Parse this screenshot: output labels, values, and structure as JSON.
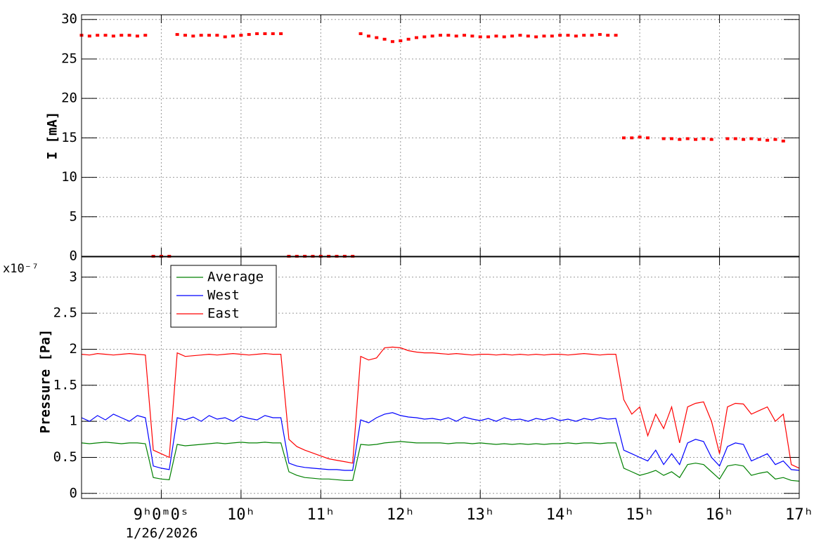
{
  "chart_data": [
    {
      "type": "scatter",
      "y_label": "I [mA]",
      "x": [
        8.0,
        8.1,
        8.2,
        8.3,
        8.4,
        8.5,
        8.6,
        8.7,
        8.8,
        8.9,
        9.0,
        9.1,
        9.2,
        9.3,
        9.4,
        9.5,
        9.6,
        9.7,
        9.8,
        9.9,
        10.0,
        10.1,
        10.2,
        10.3,
        10.4,
        10.5,
        10.6,
        10.7,
        10.8,
        10.9,
        11.0,
        11.1,
        11.2,
        11.3,
        11.4,
        11.5,
        11.6,
        11.7,
        11.8,
        11.9,
        12.0,
        12.1,
        12.2,
        12.3,
        12.4,
        12.5,
        12.6,
        12.7,
        12.8,
        12.9,
        13.0,
        13.1,
        13.2,
        13.3,
        13.4,
        13.5,
        13.6,
        13.7,
        13.8,
        13.9,
        14.0,
        14.1,
        14.2,
        14.3,
        14.4,
        14.5,
        14.6,
        14.7,
        14.8,
        14.9,
        15.0,
        15.1,
        15.2,
        15.3,
        15.4,
        15.5,
        15.6,
        15.7,
        15.8,
        15.9,
        16.0,
        16.1,
        16.2,
        16.3,
        16.4,
        16.5,
        16.6,
        16.7,
        16.8,
        16.9,
        17.0
      ],
      "series": [
        {
          "color": "#ff0000",
          "values": [
            28,
            27.9,
            28,
            28,
            27.9,
            28,
            28,
            27.9,
            28,
            0,
            0,
            0,
            28.1,
            28,
            27.9,
            28,
            28,
            28,
            27.8,
            27.9,
            28,
            28.1,
            28.2,
            28.2,
            28.2,
            28.2,
            0,
            0,
            0,
            0,
            0,
            0,
            0,
            0,
            0,
            28.2,
            27.9,
            27.7,
            27.5,
            27.2,
            27.3,
            27.5,
            27.7,
            27.8,
            27.9,
            28,
            28,
            27.9,
            28,
            27.9,
            27.8,
            27.8,
            27.9,
            27.8,
            27.9,
            28,
            27.9,
            27.8,
            27.9,
            27.9,
            28,
            28,
            27.9,
            28,
            28,
            28.1,
            28,
            28,
            15,
            15,
            15.1,
            15,
            null,
            14.9,
            14.9,
            14.8,
            14.9,
            14.8,
            14.9,
            14.8,
            null,
            14.9,
            14.9,
            14.8,
            14.9,
            14.8,
            14.7,
            14.8,
            14.6,
            null,
            null
          ]
        }
      ],
      "xlim": [
        8,
        17
      ],
      "ylim": [
        0,
        30.6
      ],
      "yticks": [
        0,
        5,
        10,
        15,
        20,
        25,
        30
      ],
      "grid": true
    },
    {
      "type": "line",
      "y_label": "Pressure [Pa]",
      "exponent_label": "x10⁻⁷",
      "date_label": "1/26/2026",
      "x": [
        8.0,
        8.1,
        8.2,
        8.3,
        8.4,
        8.5,
        8.6,
        8.7,
        8.8,
        8.9,
        9.0,
        9.1,
        9.2,
        9.3,
        9.4,
        9.5,
        9.6,
        9.7,
        9.8,
        9.9,
        10.0,
        10.1,
        10.2,
        10.3,
        10.4,
        10.5,
        10.6,
        10.7,
        10.8,
        10.9,
        11.0,
        11.1,
        11.2,
        11.3,
        11.4,
        11.5,
        11.6,
        11.7,
        11.8,
        11.9,
        12.0,
        12.1,
        12.2,
        12.3,
        12.4,
        12.5,
        12.6,
        12.7,
        12.8,
        12.9,
        13.0,
        13.1,
        13.2,
        13.3,
        13.4,
        13.5,
        13.6,
        13.7,
        13.8,
        13.9,
        14.0,
        14.1,
        14.2,
        14.3,
        14.4,
        14.5,
        14.6,
        14.7,
        14.8,
        14.9,
        15.0,
        15.1,
        15.2,
        15.3,
        15.4,
        15.5,
        15.6,
        15.7,
        15.8,
        15.9,
        16.0,
        16.1,
        16.2,
        16.3,
        16.4,
        16.5,
        16.6,
        16.7,
        16.8,
        16.9,
        17.0
      ],
      "series": [
        {
          "name": "Average",
          "color": "#008000",
          "values": [
            0.7,
            0.69,
            0.7,
            0.71,
            0.7,
            0.69,
            0.7,
            0.7,
            0.69,
            0.22,
            0.2,
            0.19,
            0.68,
            0.66,
            0.67,
            0.68,
            0.69,
            0.7,
            0.69,
            0.7,
            0.71,
            0.7,
            0.7,
            0.71,
            0.7,
            0.7,
            0.3,
            0.25,
            0.22,
            0.21,
            0.2,
            0.2,
            0.19,
            0.18,
            0.18,
            0.68,
            0.67,
            0.68,
            0.7,
            0.71,
            0.72,
            0.71,
            0.7,
            0.7,
            0.7,
            0.7,
            0.69,
            0.7,
            0.7,
            0.69,
            0.7,
            0.69,
            0.68,
            0.69,
            0.68,
            0.69,
            0.68,
            0.69,
            0.68,
            0.69,
            0.69,
            0.7,
            0.69,
            0.7,
            0.7,
            0.69,
            0.7,
            0.7,
            0.35,
            0.3,
            0.25,
            0.28,
            0.32,
            0.25,
            0.3,
            0.22,
            0.4,
            0.42,
            0.4,
            0.3,
            0.2,
            0.38,
            0.4,
            0.38,
            0.25,
            0.28,
            0.3,
            0.2,
            0.22,
            0.18,
            0.17
          ]
        },
        {
          "name": "West",
          "color": "#0000ff",
          "values": [
            1.05,
            1.0,
            1.08,
            1.02,
            1.1,
            1.05,
            1.0,
            1.08,
            1.05,
            0.38,
            0.35,
            0.33,
            1.05,
            1.02,
            1.06,
            1.0,
            1.08,
            1.03,
            1.05,
            1.0,
            1.07,
            1.04,
            1.02,
            1.08,
            1.05,
            1.05,
            0.42,
            0.38,
            0.36,
            0.35,
            0.34,
            0.33,
            0.33,
            0.32,
            0.32,
            1.02,
            0.98,
            1.05,
            1.1,
            1.12,
            1.08,
            1.06,
            1.05,
            1.03,
            1.04,
            1.02,
            1.05,
            1.0,
            1.06,
            1.03,
            1.01,
            1.04,
            1.0,
            1.05,
            1.02,
            1.03,
            1.0,
            1.04,
            1.02,
            1.05,
            1.01,
            1.03,
            1.0,
            1.04,
            1.02,
            1.05,
            1.03,
            1.04,
            0.6,
            0.55,
            0.5,
            0.45,
            0.6,
            0.4,
            0.55,
            0.4,
            0.7,
            0.75,
            0.72,
            0.5,
            0.38,
            0.65,
            0.7,
            0.68,
            0.45,
            0.5,
            0.55,
            0.4,
            0.45,
            0.33,
            0.32
          ]
        },
        {
          "name": "East",
          "color": "#ff0000",
          "values": [
            1.93,
            1.92,
            1.94,
            1.93,
            1.92,
            1.93,
            1.94,
            1.93,
            1.92,
            0.6,
            0.55,
            0.5,
            1.95,
            1.9,
            1.91,
            1.92,
            1.93,
            1.92,
            1.93,
            1.94,
            1.93,
            1.92,
            1.93,
            1.94,
            1.93,
            1.93,
            0.75,
            0.65,
            0.6,
            0.56,
            0.52,
            0.48,
            0.46,
            0.44,
            0.42,
            1.9,
            1.85,
            1.88,
            2.02,
            2.03,
            2.02,
            1.98,
            1.96,
            1.95,
            1.95,
            1.94,
            1.93,
            1.94,
            1.93,
            1.92,
            1.93,
            1.93,
            1.92,
            1.93,
            1.92,
            1.93,
            1.92,
            1.93,
            1.92,
            1.93,
            1.93,
            1.92,
            1.93,
            1.94,
            1.93,
            1.92,
            1.93,
            1.93,
            1.3,
            1.1,
            1.2,
            0.8,
            1.1,
            0.9,
            1.2,
            0.7,
            1.2,
            1.25,
            1.27,
            1.0,
            0.55,
            1.2,
            1.25,
            1.24,
            1.1,
            1.15,
            1.2,
            1.0,
            1.1,
            0.4,
            0.35
          ]
        }
      ],
      "xlim": [
        8,
        17
      ],
      "xticks": [
        {
          "value": 9,
          "label": "9ʰ0ᵐ0ˢ"
        },
        {
          "value": 10,
          "label": "10ʰ"
        },
        {
          "value": 11,
          "label": "11ʰ"
        },
        {
          "value": 12,
          "label": "12ʰ"
        },
        {
          "value": 13,
          "label": "13ʰ"
        },
        {
          "value": 14,
          "label": "14ʰ"
        },
        {
          "value": 15,
          "label": "15ʰ"
        },
        {
          "value": 16,
          "label": "16ʰ"
        },
        {
          "value": 17,
          "label": "17ʰ"
        }
      ],
      "ylim": [
        -0.07,
        3.28
      ],
      "yticks": [
        0,
        0.5,
        1,
        1.5,
        2,
        2.5,
        3
      ],
      "grid": true,
      "legend": "upper-left"
    }
  ]
}
